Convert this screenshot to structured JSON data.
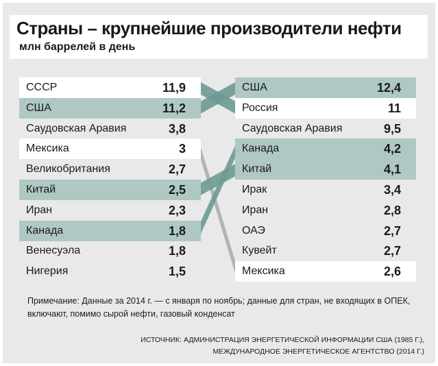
{
  "title": "Страны – крупнейшие производители нефти",
  "subtitle": "млн баррелей в день",
  "note": "Примечание: Данные за 2014 г. — с января по ноябрь; данные для стран, не входящих в ОПЕК, включают, помимо сырой нефти, газовый конденсат",
  "source": [
    "ИСТОЧНИК: АДМИНИСТРАЦИЯ ЭНЕРГЕТИЧЕСКОЙ ИНФОРМАЦИИ США (1985 Г.),",
    "МЕЖДУНАРОДНОЕ ЭНЕРГЕТИЧЕСКОЕ АГЕНТСТВО (2014 Г.)"
  ],
  "colors": {
    "highlight": "#afc8c3",
    "link_teal": "#6e9a93",
    "link_gray": "#a9a9a9",
    "row_white": "#ffffff"
  },
  "chart_data": {
    "type": "table",
    "columns": [
      {
        "rows": [
          {
            "country": "СССР",
            "value": "11,9",
            "style": "white"
          },
          {
            "country": "США",
            "value": "11,2",
            "style": "teal"
          },
          {
            "country": "Саудовская Аравия",
            "value": "3,8",
            "style": "none"
          },
          {
            "country": "Мексика",
            "value": "3",
            "style": "white"
          },
          {
            "country": "Великобритания",
            "value": "2,7",
            "style": "none"
          },
          {
            "country": "Китай",
            "value": "2,5",
            "style": "teal"
          },
          {
            "country": "Иран",
            "value": "2,3",
            "style": "none"
          },
          {
            "country": "Канада",
            "value": "1,8",
            "style": "teal"
          },
          {
            "country": "Венесуэла",
            "value": "1,8",
            "style": "none"
          },
          {
            "country": "Нигерия",
            "value": "1,5",
            "style": "none"
          }
        ]
      },
      {
        "rows": [
          {
            "country": "США",
            "value": "12,4",
            "style": "teal"
          },
          {
            "country": "Россия",
            "value": "11",
            "style": "white"
          },
          {
            "country": "Саудовская Аравия",
            "value": "9,5",
            "style": "none"
          },
          {
            "country": "Канада",
            "value": "4,2",
            "style": "teal"
          },
          {
            "country": "Китай",
            "value": "4,1",
            "style": "teal"
          },
          {
            "country": "Ирак",
            "value": "3,4",
            "style": "none"
          },
          {
            "country": "Иран",
            "value": "2,8",
            "style": "none"
          },
          {
            "country": "ОАЭ",
            "value": "2,7",
            "style": "none"
          },
          {
            "country": "Кувейт",
            "value": "2,7",
            "style": "none"
          },
          {
            "country": "Мексика",
            "value": "2,6",
            "style": "white"
          }
        ]
      }
    ],
    "links": [
      {
        "from_rank": 1,
        "to_rank": 2,
        "color": "link_teal"
      },
      {
        "from_rank": 2,
        "to_rank": 1,
        "color": "link_teal"
      },
      {
        "from_rank": 4,
        "to_rank": 10,
        "color": "link_gray"
      },
      {
        "from_rank": 6,
        "to_rank": 5,
        "color": "link_teal"
      },
      {
        "from_rank": 8,
        "to_rank": 4,
        "color": "link_teal"
      }
    ]
  }
}
